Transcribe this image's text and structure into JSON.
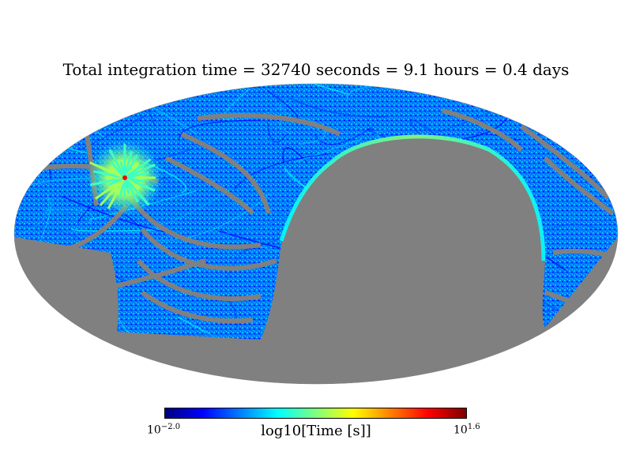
{
  "title": "Total integration time = 32740 seconds = 9.1 hours = 0.4 days",
  "colorbar": {
    "label": "log10[Time [s]]",
    "min_label_base": "10",
    "min_label_exp": "−2.0",
    "max_label_base": "10",
    "max_label_exp": "1.6",
    "min": -2.0,
    "max": 1.6,
    "colormap": "jet",
    "colors": [
      "#00007f",
      "#0000ff",
      "#007fff",
      "#00ffff",
      "#7fff7f",
      "#ffff00",
      "#ff7f00",
      "#ff0000",
      "#7f0000"
    ]
  },
  "map": {
    "projection": "mollweide",
    "unobserved_color": "#808080",
    "hotspot_colors": [
      "#ff0000",
      "#ffff00",
      "#7fff7f"
    ],
    "coverage_colors": [
      "#0000ff",
      "#007fff",
      "#00bfff",
      "#00ffff",
      "#0040ff"
    ]
  }
}
